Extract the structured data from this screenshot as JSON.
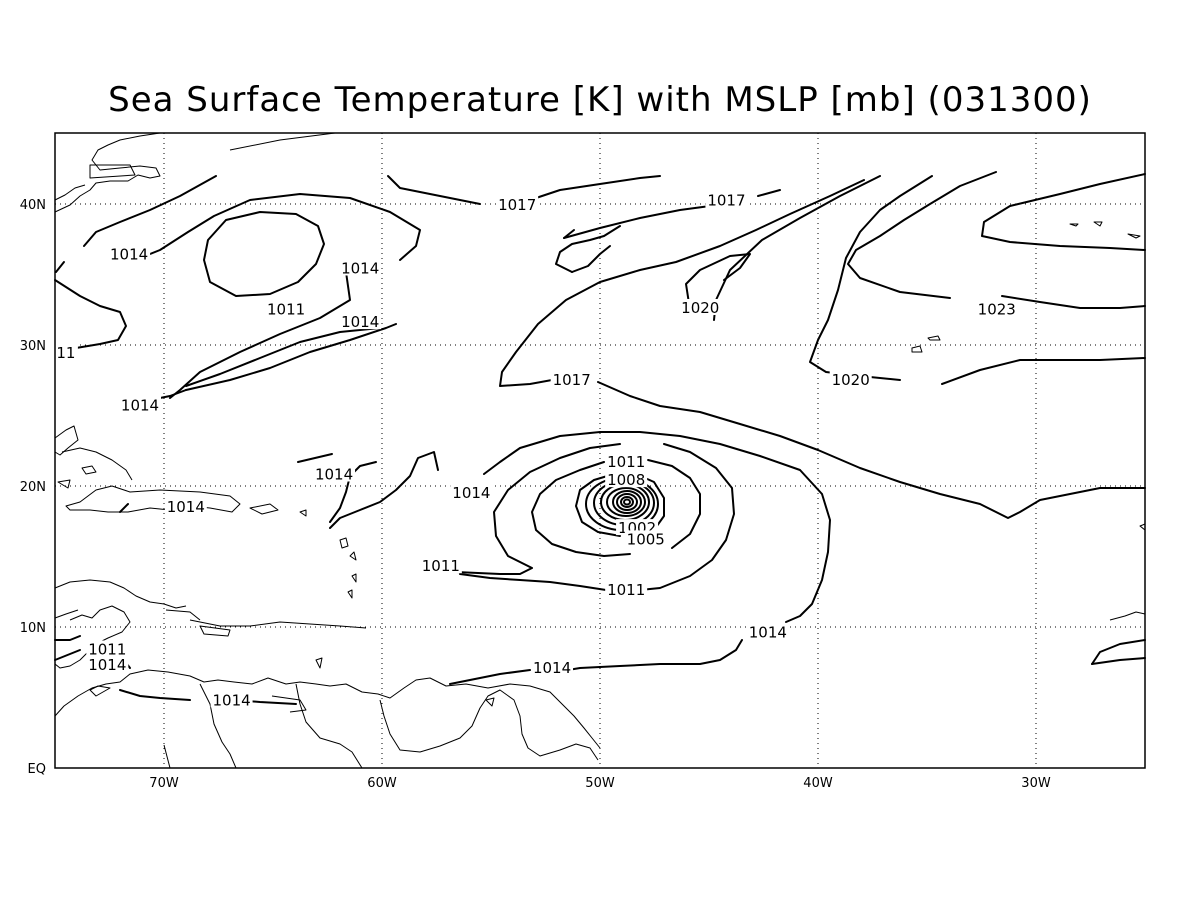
{
  "title": "Sea Surface Temperature [K] with MSLP [mb] (031300)",
  "lon_labels": [
    "70W",
    "60W",
    "50W",
    "40W",
    "30W"
  ],
  "lat_labels": [
    "EQ",
    "10N",
    "20N",
    "30N",
    "40N"
  ],
  "contour_labels": [
    {
      "text": "1017",
      "lon": -53.8,
      "lat": 39.9
    },
    {
      "text": "1017",
      "lon": -44.2,
      "lat": 40.2
    },
    {
      "text": "1014",
      "lon": -71.6,
      "lat": 36.4
    },
    {
      "text": "1011",
      "lon": -64.4,
      "lat": 32.5
    },
    {
      "text": "1014",
      "lon": -61.0,
      "lat": 35.4
    },
    {
      "text": "1014",
      "lon": -61.0,
      "lat": 31.6
    },
    {
      "text": "11",
      "lon": -74.5,
      "lat": 29.4
    },
    {
      "text": "1020",
      "lon": -45.4,
      "lat": 32.6
    },
    {
      "text": "1023",
      "lon": -31.8,
      "lat": 32.5
    },
    {
      "text": "1020",
      "lon": -38.5,
      "lat": 27.5
    },
    {
      "text": "1017",
      "lon": -51.3,
      "lat": 27.5
    },
    {
      "text": "1014",
      "lon": -71.1,
      "lat": 25.7
    },
    {
      "text": "1014",
      "lon": -62.2,
      "lat": 20.8
    },
    {
      "text": "1014",
      "lon": -55.9,
      "lat": 19.5
    },
    {
      "text": "1011",
      "lon": -48.8,
      "lat": 21.7
    },
    {
      "text": "1008",
      "lon": -48.8,
      "lat": 20.4
    },
    {
      "text": "1002",
      "lon": -48.3,
      "lat": 17.0
    },
    {
      "text": "1005",
      "lon": -47.9,
      "lat": 16.2
    },
    {
      "text": "1011",
      "lon": -57.3,
      "lat": 14.3
    },
    {
      "text": "1011",
      "lon": -48.8,
      "lat": 12.6
    },
    {
      "text": "1014",
      "lon": -69.0,
      "lat": 18.5
    },
    {
      "text": "1014",
      "lon": -42.3,
      "lat": 9.6
    },
    {
      "text": "1014",
      "lon": -52.2,
      "lat": 7.1
    },
    {
      "text": "1011",
      "lon": -72.6,
      "lat": 8.4
    },
    {
      "text": "1014",
      "lon": -72.6,
      "lat": 7.3
    },
    {
      "text": "1014",
      "lon": -66.9,
      "lat": 4.8
    }
  ],
  "colors": {
    "lines": "#000000",
    "background": "#ffffff"
  }
}
